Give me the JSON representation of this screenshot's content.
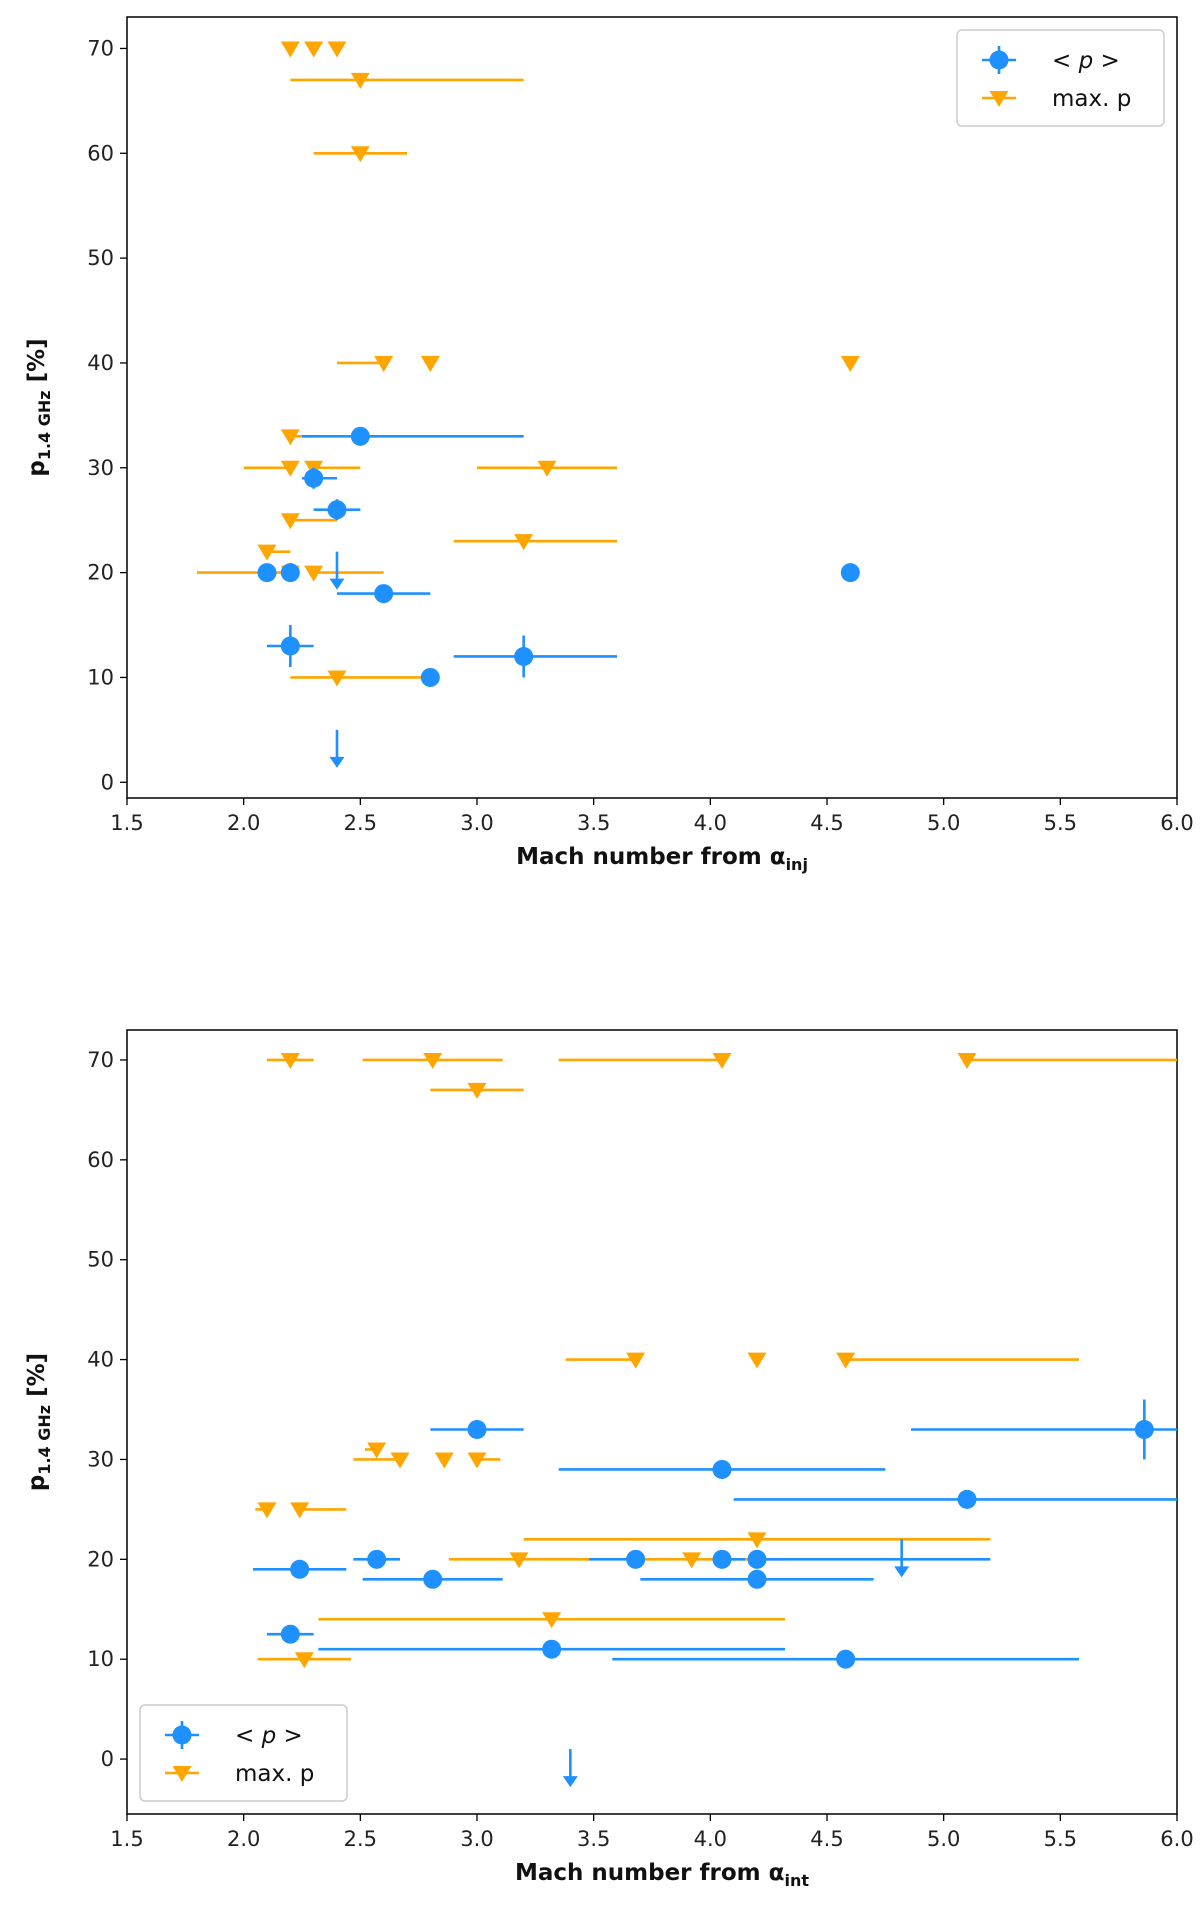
{
  "chart_data": [
    {
      "type": "scatter",
      "xlabel": "Mach number from α",
      "xlabel_sub": "inj",
      "ylabel": "p",
      "ylabel_sub": "1.4 GHz",
      "ylabel_unit": " [%]",
      "xlim": [
        1.5,
        6.0
      ],
      "ylim": [
        -1.5,
        73
      ],
      "xticks": [
        1.5,
        2.0,
        2.5,
        3.0,
        3.5,
        4.0,
        4.5,
        5.0,
        5.5,
        6.0
      ],
      "xtick_labels": [
        "1.5",
        "2.0",
        "2.5",
        "3.0",
        "3.5",
        "4.0",
        "4.5",
        "5.0",
        "5.5",
        "6.0"
      ],
      "yticks": [
        0,
        10,
        20,
        30,
        40,
        50,
        60,
        70
      ],
      "ytick_labels": [
        "0",
        "10",
        "20",
        "30",
        "40",
        "50",
        "60",
        "70"
      ],
      "grid": false,
      "legend_position": "top-right",
      "series": [
        {
          "name": "< p >",
          "marker": "circle",
          "color": "#1e90ff",
          "points": [
            {
              "x": 2.5,
              "y": 33,
              "xerr": [
                0.25,
                0.7
              ]
            },
            {
              "x": 2.3,
              "y": 29,
              "xerr": [
                0.05,
                0.1
              ],
              "yerr": 1
            },
            {
              "x": 2.4,
              "y": 26,
              "xerr": [
                0.1,
                0.1
              ],
              "yerr": 1
            },
            {
              "x": 2.1,
              "y": 20
            },
            {
              "x": 2.2,
              "y": 20
            },
            {
              "x": 2.6,
              "y": 18,
              "xerr": [
                0.2,
                0.2
              ]
            },
            {
              "x": 2.2,
              "y": 13,
              "xerr": [
                0.1,
                0.1
              ],
              "yerr": 2
            },
            {
              "x": 3.2,
              "y": 12,
              "xerr": [
                0.3,
                0.4
              ],
              "yerr": 2
            },
            {
              "x": 2.8,
              "y": 10
            },
            {
              "x": 4.6,
              "y": 20
            }
          ],
          "upper_limits": [
            {
              "x": 2.4,
              "y": 22
            },
            {
              "x": 2.4,
              "y": 5
            }
          ]
        },
        {
          "name": "max. p",
          "marker": "triangle-down",
          "color": "#ffa500",
          "points": [
            {
              "x": 2.2,
              "y": 70,
              "xerr": [
                0.0,
                0.0
              ]
            },
            {
              "x": 2.3,
              "y": 70
            },
            {
              "x": 2.4,
              "y": 70
            },
            {
              "x": 2.5,
              "y": 67,
              "xerr": [
                0.3,
                0.7
              ]
            },
            {
              "x": 2.5,
              "y": 60,
              "xerr": [
                0.2,
                0.2
              ]
            },
            {
              "x": 2.6,
              "y": 40,
              "xerr": [
                0.2,
                0.0
              ]
            },
            {
              "x": 2.8,
              "y": 40,
              "xerr": [
                0.0,
                0.0
              ]
            },
            {
              "x": 4.6,
              "y": 40
            },
            {
              "x": 2.2,
              "y": 33,
              "xerr": [
                0.0,
                0.1
              ]
            },
            {
              "x": 2.2,
              "y": 30,
              "xerr": [
                0.2,
                0.0
              ]
            },
            {
              "x": 2.3,
              "y": 30,
              "xerr": [
                0.0,
                0.2
              ]
            },
            {
              "x": 3.3,
              "y": 30,
              "xerr": [
                0.3,
                0.3
              ]
            },
            {
              "x": 2.2,
              "y": 25,
              "xerr": [
                0.0,
                0.2
              ]
            },
            {
              "x": 3.2,
              "y": 23,
              "xerr": [
                0.3,
                0.4
              ]
            },
            {
              "x": 2.1,
              "y": 22,
              "xerr": [
                0.0,
                0.1
              ]
            },
            {
              "x": 2.2,
              "y": 20,
              "xerr": [
                0.4,
                0.0
              ]
            },
            {
              "x": 2.3,
              "y": 20,
              "xerr": [
                0.0,
                0.3
              ]
            },
            {
              "x": 2.4,
              "y": 10,
              "xerr": [
                0.2,
                0.4
              ]
            }
          ]
        }
      ]
    },
    {
      "type": "scatter",
      "xlabel": "Mach number from α",
      "xlabel_sub": "int",
      "ylabel": "p",
      "ylabel_sub": "1.4 GHz",
      "ylabel_unit": " [%]",
      "xlim": [
        1.5,
        6.0
      ],
      "ylim": [
        -5.5,
        73
      ],
      "xticks": [
        1.5,
        2.0,
        2.5,
        3.0,
        3.5,
        4.0,
        4.5,
        5.0,
        5.5,
        6.0
      ],
      "xtick_labels": [
        "1.5",
        "2.0",
        "2.5",
        "3.0",
        "3.5",
        "4.0",
        "4.5",
        "5.0",
        "5.5",
        "6.0"
      ],
      "yticks": [
        0,
        10,
        20,
        30,
        40,
        50,
        60,
        70
      ],
      "ytick_labels": [
        "0",
        "10",
        "20",
        "30",
        "40",
        "50",
        "60",
        "70"
      ],
      "grid": false,
      "legend_position": "bottom-left",
      "series": [
        {
          "name": "< p >",
          "marker": "circle",
          "color": "#1e90ff",
          "points": [
            {
              "x": 3.0,
              "y": 33,
              "xerr": [
                0.2,
                0.2
              ]
            },
            {
              "x": 5.86,
              "y": 33,
              "xerr": [
                1.0,
                0.2
              ],
              "yerr": 3
            },
            {
              "x": 4.05,
              "y": 29,
              "xerr": [
                0.7,
                0.7
              ]
            },
            {
              "x": 5.1,
              "y": 26,
              "xerr": [
                1.0,
                0.9
              ]
            },
            {
              "x": 2.57,
              "y": 20,
              "xerr": [
                0.1,
                0.1
              ]
            },
            {
              "x": 3.68,
              "y": 20,
              "xerr": [
                0.2,
                0.0
              ]
            },
            {
              "x": 4.05,
              "y": 20,
              "xerr": [
                0.0,
                0.1
              ]
            },
            {
              "x": 4.2,
              "y": 20,
              "xerr": [
                0.0,
                1.0
              ]
            },
            {
              "x": 2.24,
              "y": 19,
              "xerr": [
                0.2,
                0.2
              ]
            },
            {
              "x": 2.81,
              "y": 18,
              "xerr": [
                0.3,
                0.3
              ]
            },
            {
              "x": 4.2,
              "y": 18,
              "xerr": [
                0.5,
                0.5
              ]
            },
            {
              "x": 2.2,
              "y": 12.5,
              "xerr": [
                0.1,
                0.1
              ]
            },
            {
              "x": 3.32,
              "y": 11,
              "xerr": [
                1.0,
                1.0
              ]
            },
            {
              "x": 4.58,
              "y": 10,
              "xerr": [
                1.0,
                1.0
              ]
            }
          ],
          "upper_limits": [
            {
              "x": 4.82,
              "y": 22
            },
            {
              "x": 3.4,
              "y": 1
            }
          ]
        },
        {
          "name": "max. p",
          "marker": "triangle-down",
          "color": "#ffa500",
          "points": [
            {
              "x": 2.2,
              "y": 70,
              "xerr": [
                0.1,
                0.1
              ]
            },
            {
              "x": 2.81,
              "y": 70,
              "xerr": [
                0.3,
                0.3
              ]
            },
            {
              "x": 4.05,
              "y": 70,
              "xerr": [
                0.7,
                0.0
              ]
            },
            {
              "x": 5.1,
              "y": 70,
              "xerr": [
                0.0,
                0.9
              ]
            },
            {
              "x": 3.0,
              "y": 67,
              "xerr": [
                0.2,
                0.2
              ]
            },
            {
              "x": 3.68,
              "y": 40,
              "xerr": [
                0.3,
                0.0
              ]
            },
            {
              "x": 4.2,
              "y": 40,
              "xerr": [
                0.0,
                0.0
              ]
            },
            {
              "x": 4.58,
              "y": 40,
              "xerr": [
                0.0,
                1.0
              ]
            },
            {
              "x": 2.57,
              "y": 31,
              "xerr": [
                0.05,
                0.0
              ]
            },
            {
              "x": 2.67,
              "y": 30,
              "xerr": [
                0.2,
                0.0
              ]
            },
            {
              "x": 2.86,
              "y": 30,
              "xerr": [
                0.0,
                0.0
              ]
            },
            {
              "x": 3.0,
              "y": 30,
              "xerr": [
                0.0,
                0.1
              ]
            },
            {
              "x": 2.1,
              "y": 25,
              "xerr": [
                0.05,
                0.0
              ]
            },
            {
              "x": 2.24,
              "y": 25,
              "xerr": [
                0.0,
                0.2
              ]
            },
            {
              "x": 4.2,
              "y": 22,
              "xerr": [
                1.0,
                1.0
              ]
            },
            {
              "x": 3.18,
              "y": 20,
              "xerr": [
                0.3,
                0.3
              ]
            },
            {
              "x": 3.92,
              "y": 20,
              "xerr": [
                0.2,
                0.4
              ]
            },
            {
              "x": 3.32,
              "y": 14,
              "xerr": [
                1.0,
                1.0
              ]
            },
            {
              "x": 2.26,
              "y": 10,
              "xerr": [
                0.2,
                0.2
              ]
            }
          ]
        }
      ]
    }
  ]
}
